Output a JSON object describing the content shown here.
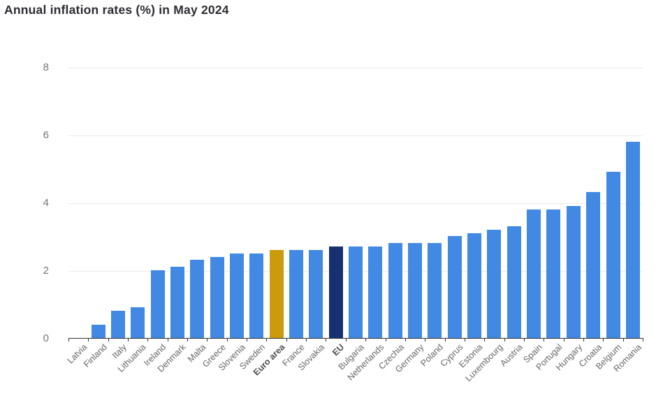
{
  "title": "Annual inflation rates (%) in May 2024",
  "chart_data": {
    "type": "bar",
    "title": "Annual inflation rates (%) in May 2024",
    "xlabel": "",
    "ylabel": "",
    "ylim": [
      0,
      8
    ],
    "yticks": [
      0,
      2,
      4,
      6,
      8
    ],
    "grid": "horizontal-light",
    "legend": "none",
    "categories": [
      "Latvia",
      "Finland",
      "Italy",
      "Lithuania",
      "Ireland",
      "Denmark",
      "Malta",
      "Greece",
      "Slovenia",
      "Sweden",
      "Euro area",
      "France",
      "Slovakia",
      "EU",
      "Bulgaria",
      "Netherlands",
      "Czechia",
      "Germany",
      "Poland",
      "Cyprus",
      "Estonia",
      "Luxembourg",
      "Austria",
      "Spain",
      "Portugal",
      "Hungary",
      "Croatia",
      "Belgium",
      "Romania"
    ],
    "values": [
      0.0,
      0.4,
      0.8,
      0.9,
      2.0,
      2.1,
      2.3,
      2.4,
      2.5,
      2.5,
      2.6,
      2.6,
      2.6,
      2.7,
      2.7,
      2.7,
      2.8,
      2.8,
      2.8,
      3.0,
      3.1,
      3.2,
      3.3,
      3.8,
      3.8,
      3.9,
      4.3,
      4.9,
      5.8
    ],
    "emphasized_categories": [
      "Euro area",
      "EU"
    ]
  },
  "colors": {
    "bar_default": "#4189e2",
    "bar_euro_area": "#cc9a0d",
    "bar_eu": "#163070",
    "gridline": "#e9e9e9",
    "axis": "#333333",
    "title_text": "#2c2c34",
    "ytick_text": "#757575",
    "xlabel_text": "#666666"
  }
}
